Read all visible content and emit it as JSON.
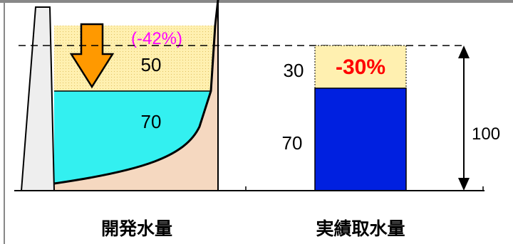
{
  "colors": {
    "water": "#33f0f0",
    "reduction_fill": "#fff0b0",
    "reduction_dots": "#e0c060",
    "terrain": "#f5d8c0",
    "arrow": "#ff9900",
    "bar": "#0020e0",
    "reduction_text_left": "#ff00ff",
    "reduction_text_right": "#ff0000",
    "dam": "#eeeeee"
  },
  "left": {
    "reduction_percent": "(-42%)",
    "upper_value": "50",
    "lower_value": "70",
    "caption": "開発水量"
  },
  "right": {
    "reduction_percent": "-30%",
    "upper_value": "30",
    "lower_value": "70",
    "caption": "実績取水量",
    "total_value": "100"
  },
  "icons": {
    "down_arrow": "down-arrow-icon",
    "double_arrow": "double-headed-arrow-icon"
  }
}
